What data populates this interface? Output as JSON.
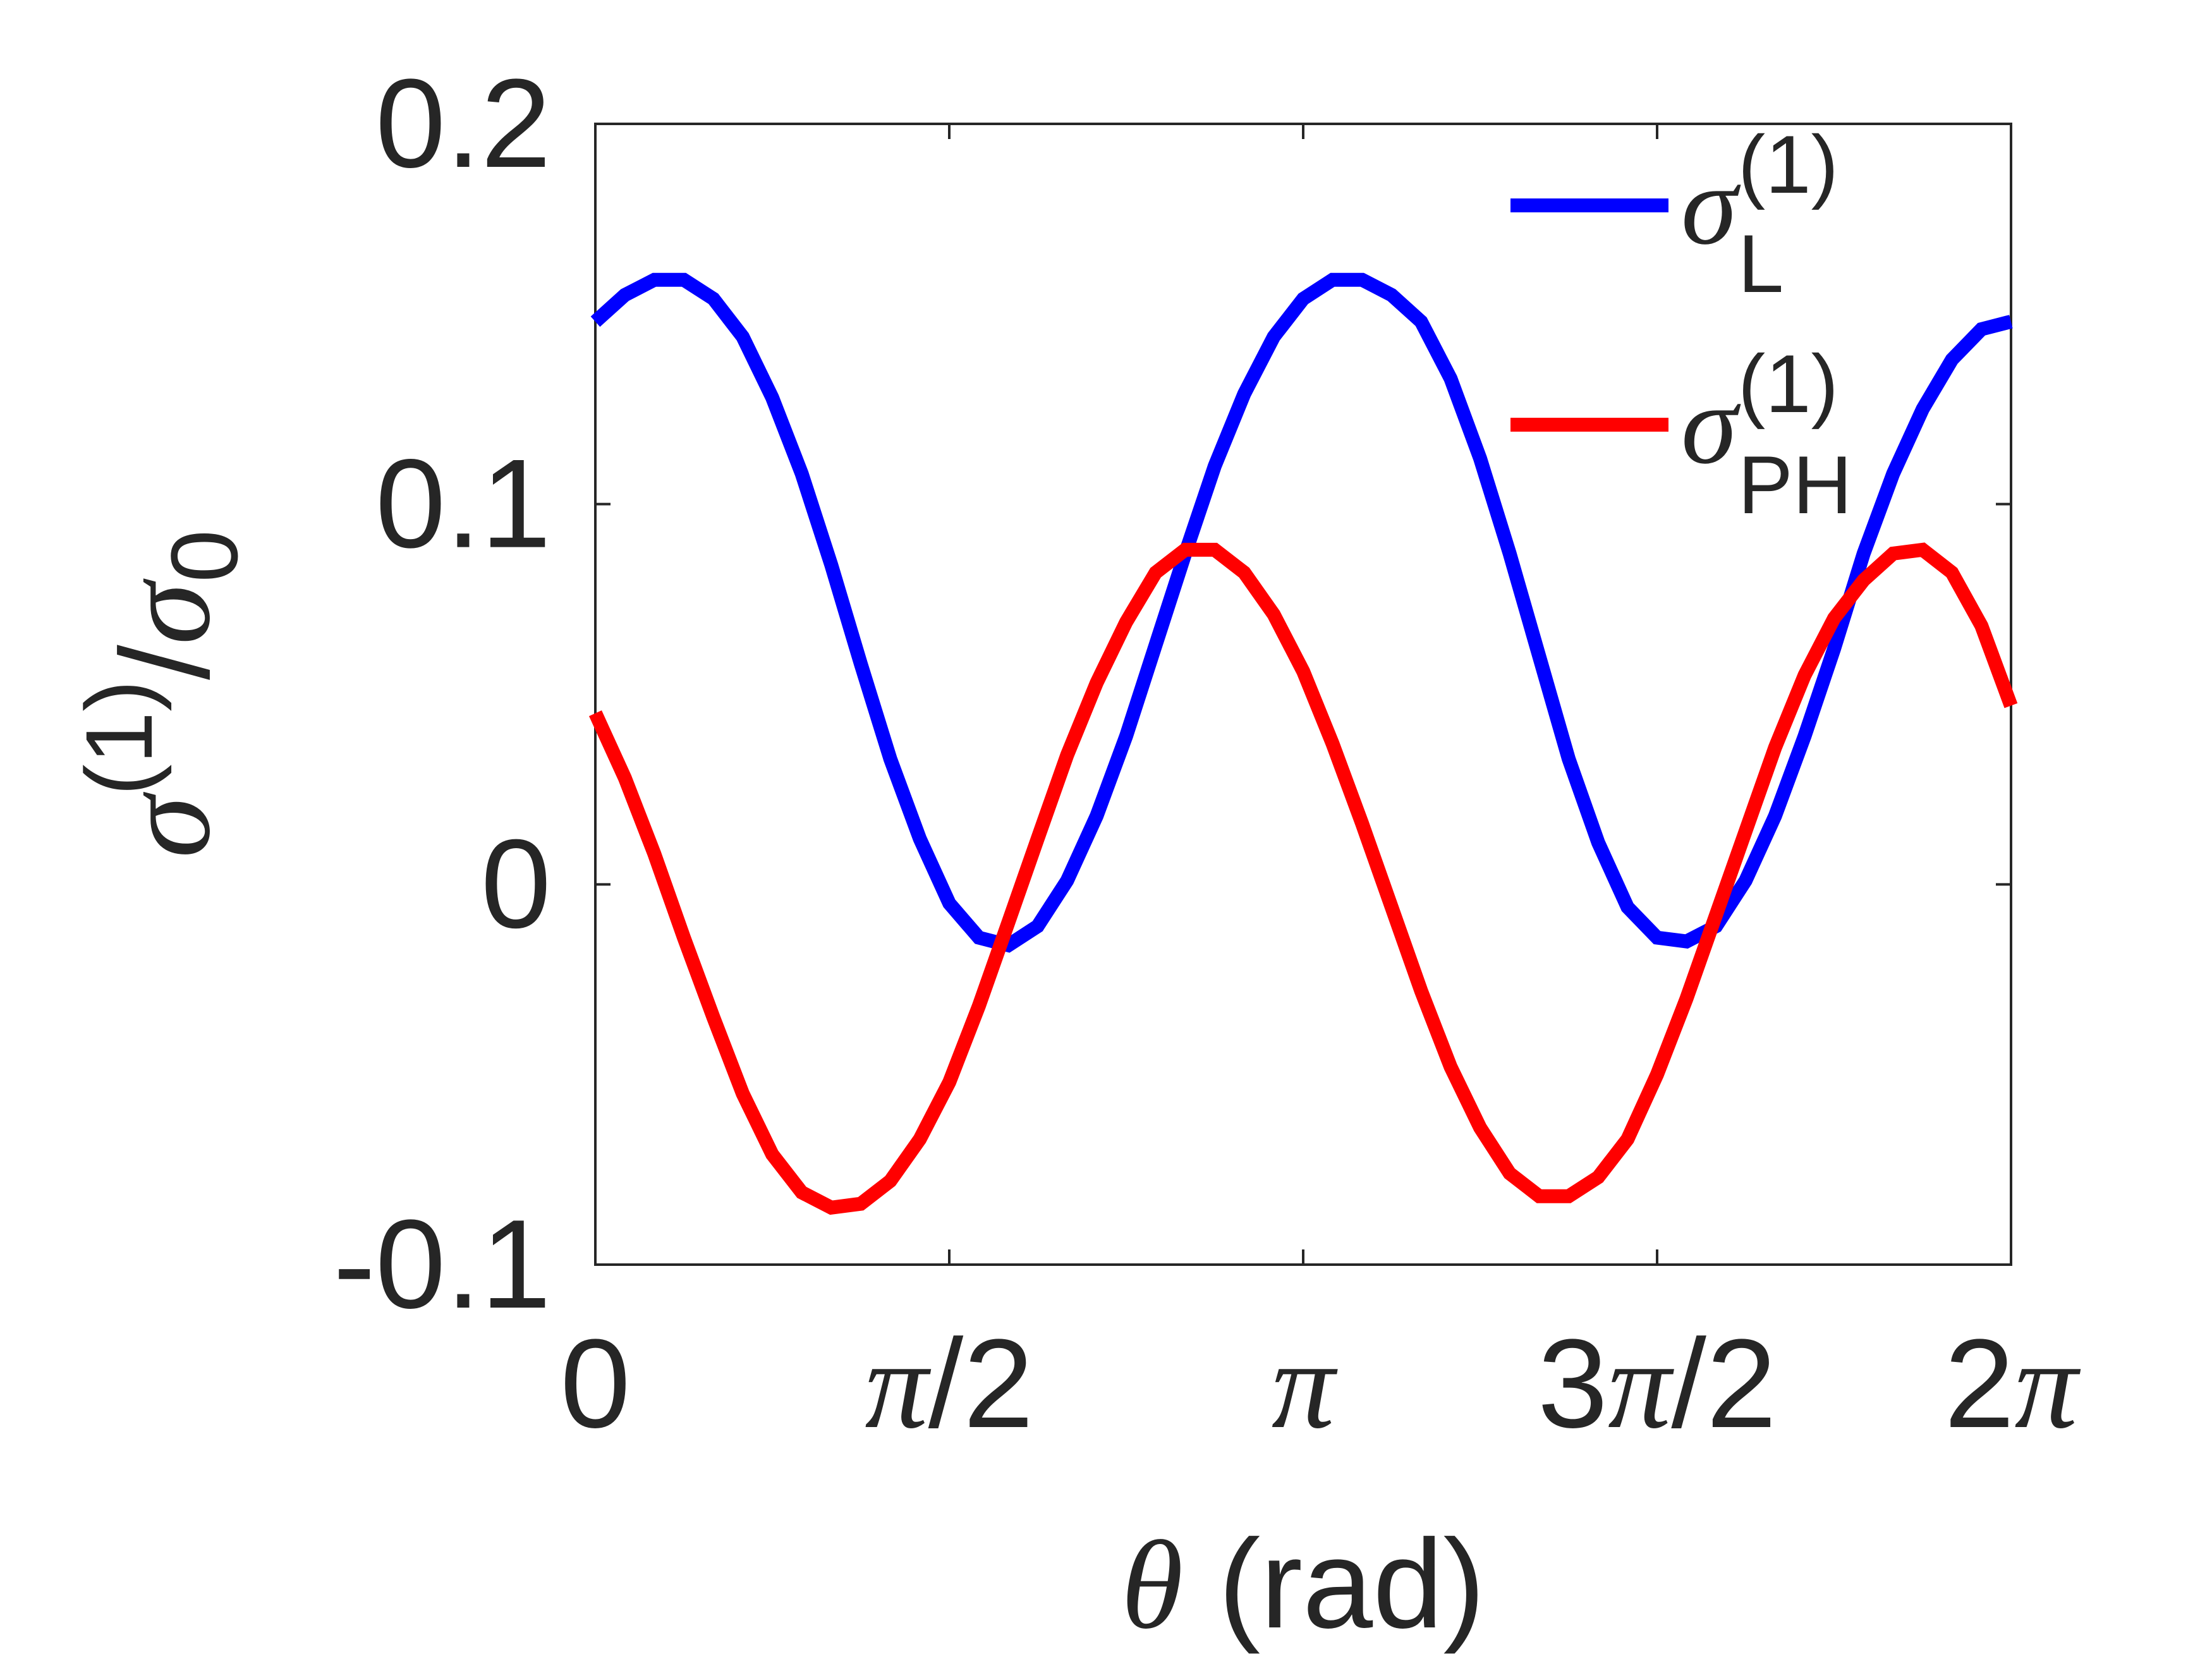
{
  "chart_data": {
    "type": "line",
    "title": "",
    "xlabel": {
      "symbol": "θ",
      "text": " (rad)"
    },
    "ylabel": {
      "main": "σ",
      "sup": "(1)",
      "slash": "/",
      "denom": "σ",
      "sub": "0"
    },
    "xlim": [
      0,
      6.283185
    ],
    "ylim": [
      -0.1,
      0.2
    ],
    "xticks": [
      {
        "value": 0,
        "num": "0",
        "greek": "",
        "tail": ""
      },
      {
        "value": 1.570796,
        "num": "",
        "greek": "π",
        "tail": "/2"
      },
      {
        "value": 3.141593,
        "num": "",
        "greek": "π",
        "tail": ""
      },
      {
        "value": 4.712389,
        "num": "3",
        "greek": "π",
        "tail": "/2"
      },
      {
        "value": 6.283185,
        "num": "2",
        "greek": "π",
        "tail": ""
      }
    ],
    "yticks": [
      {
        "value": 0.2,
        "label": "0.2"
      },
      {
        "value": 0.1,
        "label": "0.1"
      },
      {
        "value": 0,
        "label": "0"
      },
      {
        "value": -0.1,
        "label": "-0.1"
      }
    ],
    "grid": false,
    "legend_position": "top-right",
    "series": [
      {
        "key": "L",
        "label_main": "σ",
        "label_sup": "(1)",
        "label_sub": "L",
        "color": "#0000ff",
        "x": [
          0.0,
          0.131,
          0.262,
          0.393,
          0.524,
          0.654,
          0.785,
          0.916,
          1.047,
          1.178,
          1.309,
          1.44,
          1.571,
          1.702,
          1.833,
          1.963,
          2.094,
          2.225,
          2.356,
          2.487,
          2.618,
          2.749,
          2.88,
          3.011,
          3.142,
          3.272,
          3.403,
          3.534,
          3.665,
          3.796,
          3.927,
          4.058,
          4.189,
          4.32,
          4.451,
          4.581,
          4.712,
          4.843,
          4.974,
          5.105,
          5.236,
          5.367,
          5.498,
          5.629,
          5.76,
          5.891,
          6.021,
          6.152,
          6.283
        ],
        "y": [
          0.148,
          0.155,
          0.159,
          0.159,
          0.154,
          0.144,
          0.128,
          0.108,
          0.084,
          0.058,
          0.033,
          0.012,
          -0.005,
          -0.014,
          -0.016,
          -0.011,
          0.001,
          0.018,
          0.039,
          0.063,
          0.087,
          0.11,
          0.129,
          0.144,
          0.154,
          0.159,
          0.159,
          0.155,
          0.148,
          0.133,
          0.112,
          0.087,
          0.06,
          0.033,
          0.011,
          -0.006,
          -0.014,
          -0.015,
          -0.011,
          0.001,
          0.018,
          0.039,
          0.062,
          0.087,
          0.108,
          0.125,
          0.138,
          0.146,
          0.148
        ]
      },
      {
        "key": "PH",
        "label_main": "σ",
        "label_sup": "(1)",
        "label_sub": "PH",
        "color": "#ff0000",
        "x": [
          0.0,
          0.131,
          0.262,
          0.393,
          0.524,
          0.654,
          0.785,
          0.916,
          1.047,
          1.178,
          1.309,
          1.44,
          1.571,
          1.702,
          1.833,
          1.963,
          2.094,
          2.225,
          2.356,
          2.487,
          2.618,
          2.749,
          2.88,
          3.011,
          3.142,
          3.272,
          3.403,
          3.534,
          3.665,
          3.796,
          3.927,
          4.058,
          4.189,
          4.32,
          4.451,
          4.581,
          4.712,
          4.843,
          4.974,
          5.105,
          5.236,
          5.367,
          5.498,
          5.629,
          5.76,
          5.891,
          6.021,
          6.152,
          6.283
        ],
        "y": [
          0.045,
          0.028,
          0.008,
          -0.014,
          -0.035,
          -0.055,
          -0.071,
          -0.081,
          -0.085,
          -0.084,
          -0.078,
          -0.067,
          -0.052,
          -0.032,
          -0.01,
          0.012,
          0.034,
          0.053,
          0.069,
          0.082,
          0.088,
          0.088,
          0.082,
          0.071,
          0.056,
          0.037,
          0.016,
          -0.006,
          -0.028,
          -0.048,
          -0.064,
          -0.076,
          -0.082,
          -0.082,
          -0.077,
          -0.067,
          -0.05,
          -0.03,
          -0.008,
          0.014,
          0.036,
          0.055,
          0.07,
          0.08,
          0.087,
          0.088,
          0.082,
          0.068,
          0.047
        ]
      }
    ]
  }
}
